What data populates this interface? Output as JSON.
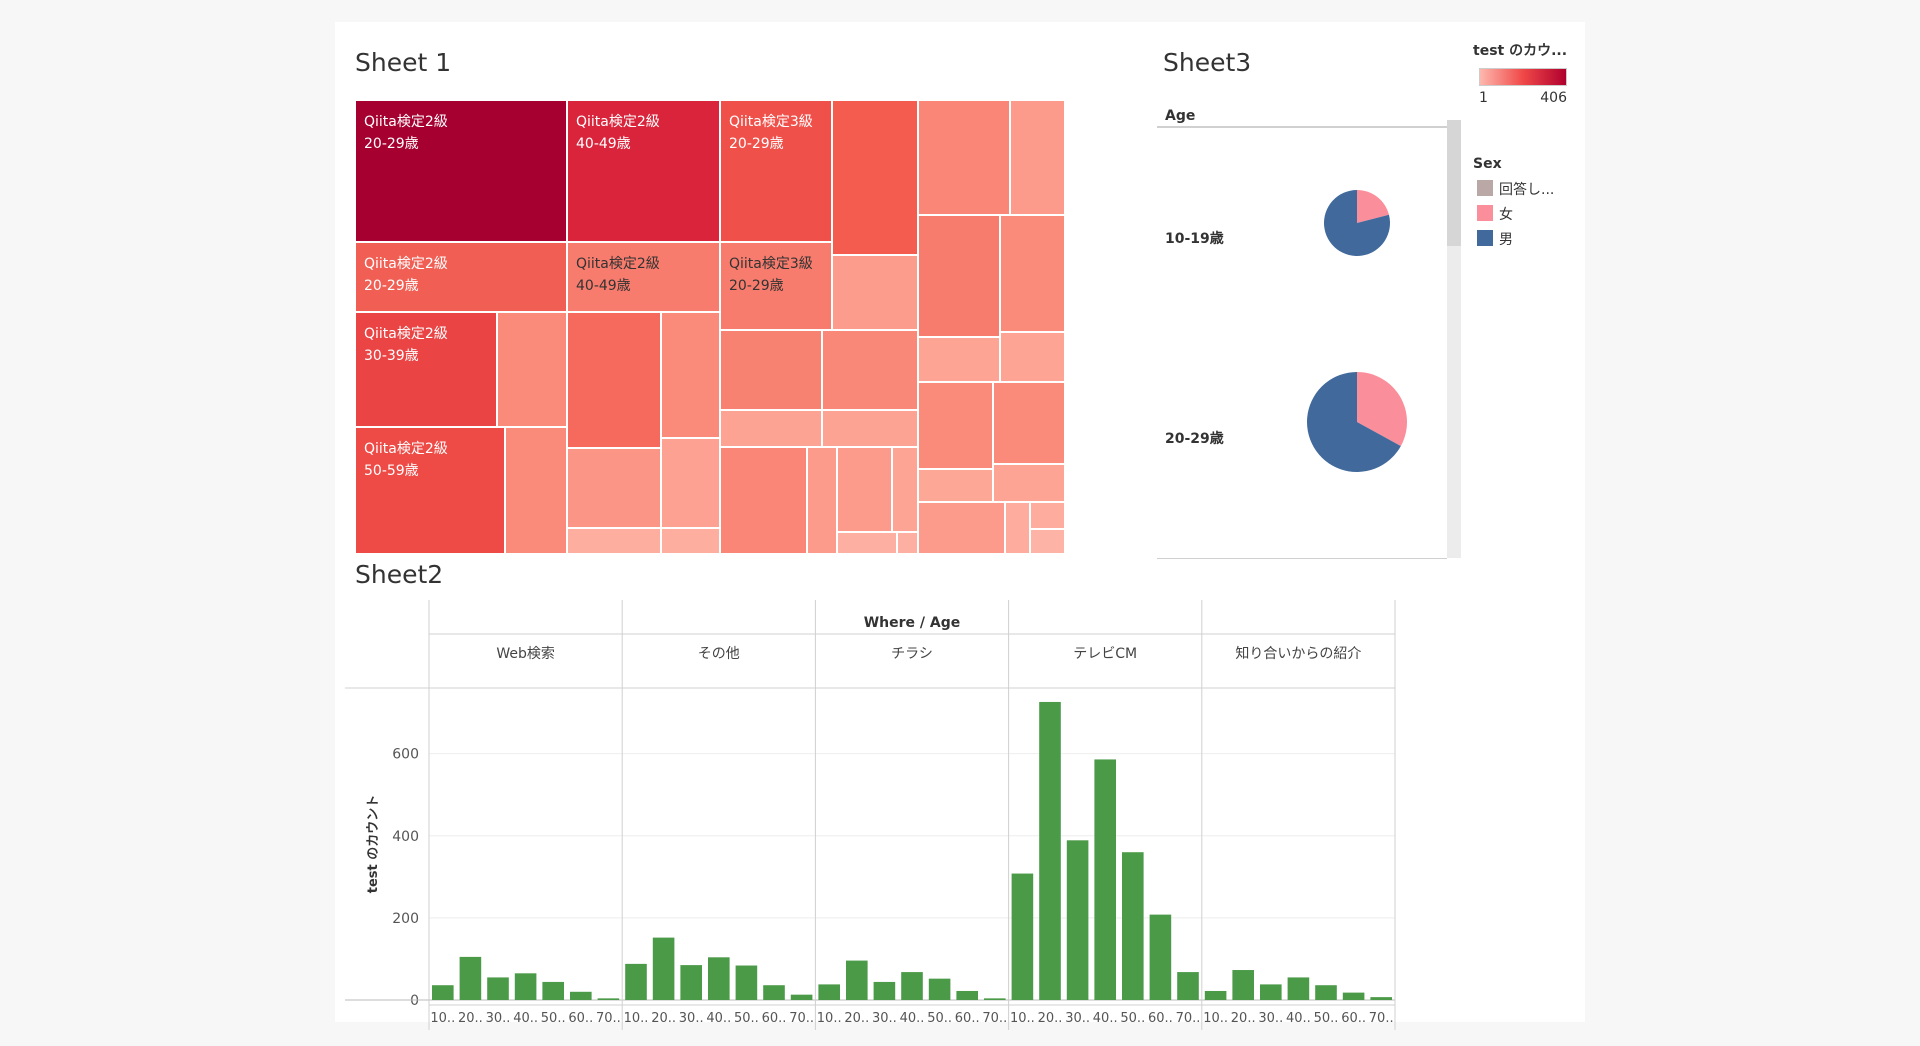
{
  "sheet1": {
    "title": "Sheet 1",
    "labels": [
      {
        "line1": "Qiita検定2級",
        "line2": "20-29歳"
      },
      {
        "line1": "Qiita検定2級",
        "line2": "40-49歳"
      },
      {
        "line1": "Qiita検定3級",
        "line2": "20-29歳"
      },
      {
        "line1": "Qiita検定2級",
        "line2": "20-29歳"
      },
      {
        "line1": "Qiita検定2級",
        "line2": "40-49歳"
      },
      {
        "line1": "Qiita検定3級",
        "line2": "20-29歳"
      },
      {
        "line1": "Qiita検定2級",
        "line2": "30-39歳"
      },
      {
        "line1": "Qiita検定2級",
        "line2": "50-59歳"
      }
    ]
  },
  "sheet2": {
    "title": "Sheet2"
  },
  "sheet3": {
    "title": "Sheet3",
    "row_header": "Age",
    "rows": [
      "10-19歳",
      "20-29歳"
    ]
  },
  "legend_color": {
    "title": "test のカウ...",
    "min": "1",
    "max": "406",
    "color_low": "#fdb8ae",
    "color_high": "#b0002e"
  },
  "legend_sex": {
    "title": "Sex",
    "items": [
      {
        "label": "回答し...",
        "color": "#b9a8a5"
      },
      {
        "label": "女",
        "color": "#fb8e9b"
      },
      {
        "label": "男",
        "color": "#41699b"
      }
    ]
  },
  "chart_data": [
    {
      "type": "treemap",
      "title": "Sheet 1",
      "measure": "test のカウント",
      "color_range": [
        1,
        406
      ],
      "labeled_cells": [
        {
          "level": "Qiita検定2級",
          "age": "20-29歳",
          "value": 406
        },
        {
          "level": "Qiita検定2級",
          "age": "40-49歳",
          "value": 300
        },
        {
          "level": "Qiita検定3級",
          "age": "20-29歳",
          "value": 250
        },
        {
          "level": "Qiita検定2級",
          "age": "20-29歳",
          "value": 200
        },
        {
          "level": "Qiita検定2級",
          "age": "40-49歳",
          "value": 140
        },
        {
          "level": "Qiita検定3級",
          "age": "20-29歳",
          "value": 120
        },
        {
          "level": "Qiita検定2級",
          "age": "30-39歳",
          "value": 240
        },
        {
          "level": "Qiita検定2級",
          "age": "50-59歳",
          "value": 250
        }
      ]
    },
    {
      "type": "pie",
      "title": "Sheet3",
      "row_field": "Age",
      "rows": [
        {
          "age": "10-19歳",
          "slices": [
            {
              "sex": "女",
              "share": 0.21
            },
            {
              "sex": "男",
              "share": 0.79
            }
          ]
        },
        {
          "age": "20-29歳",
          "slices": [
            {
              "sex": "女",
              "share": 0.33
            },
            {
              "sex": "男",
              "share": 0.67
            }
          ]
        }
      ]
    },
    {
      "type": "bar",
      "title": "Sheet2",
      "header": "Where / Age",
      "ylabel": "test のカウント",
      "ylim": [
        0,
        760
      ],
      "yticks": [
        0,
        200,
        400,
        600
      ],
      "bar_color": "#4b9a48",
      "groups": [
        "Web検索",
        "その他",
        "チラシ",
        "テレビCM",
        "知り合いからの紹介"
      ],
      "categories": [
        "10..",
        "20..",
        "30..",
        "40..",
        "50..",
        "60..",
        "70.."
      ],
      "series": [
        {
          "name": "Web検索",
          "values": [
            36,
            105,
            55,
            65,
            44,
            20,
            4
          ]
        },
        {
          "name": "その他",
          "values": [
            88,
            152,
            85,
            104,
            84,
            36,
            13
          ]
        },
        {
          "name": "チラシ",
          "values": [
            38,
            96,
            44,
            68,
            52,
            22,
            4
          ]
        },
        {
          "name": "テレビCM",
          "values": [
            308,
            726,
            389,
            586,
            360,
            208,
            68
          ]
        },
        {
          "name": "知り合いからの紹介",
          "values": [
            22,
            73,
            38,
            55,
            36,
            18,
            7
          ]
        }
      ]
    }
  ]
}
